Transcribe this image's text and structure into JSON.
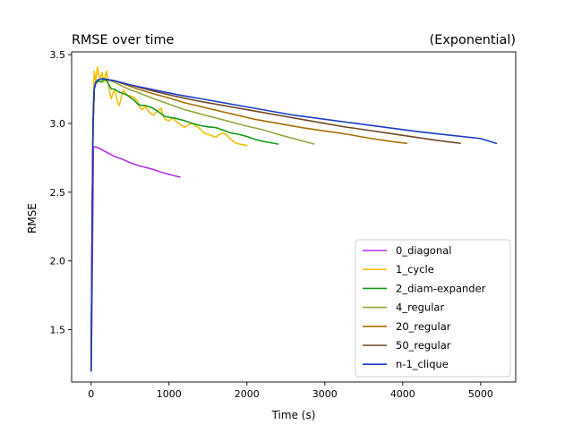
{
  "chart_data": {
    "type": "line",
    "title": "RMSE over time",
    "title_right": "(Exponential)",
    "xlabel": "Time (s)",
    "ylabel": "RMSE",
    "xlim": [
      -250,
      5450
    ],
    "ylim": [
      1.12,
      3.52
    ],
    "xticks": [
      0,
      1000,
      2000,
      3000,
      4000,
      5000
    ],
    "yticks": [
      1.5,
      2.0,
      2.5,
      3.0,
      3.5
    ],
    "grid": false,
    "legend_position": "lower right",
    "series": [
      {
        "name": "0_diagonal",
        "color": "#b030e8",
        "points": [
          [
            0,
            1.2
          ],
          [
            10,
            1.6
          ],
          [
            20,
            2.2
          ],
          [
            30,
            2.83
          ],
          [
            50,
            2.83
          ],
          [
            100,
            2.82
          ],
          [
            150,
            2.805
          ],
          [
            200,
            2.79
          ],
          [
            250,
            2.775
          ],
          [
            300,
            2.76
          ],
          [
            400,
            2.74
          ],
          [
            500,
            2.715
          ],
          [
            600,
            2.695
          ],
          [
            700,
            2.68
          ],
          [
            800,
            2.665
          ],
          [
            900,
            2.645
          ],
          [
            1000,
            2.63
          ],
          [
            1100,
            2.615
          ],
          [
            1140,
            2.61
          ]
        ]
      },
      {
        "name": "1_cycle",
        "color": "#f5be00",
        "points": [
          [
            0,
            1.2
          ],
          [
            15,
            2.5
          ],
          [
            25,
            3.1
          ],
          [
            40,
            3.38
          ],
          [
            60,
            3.3
          ],
          [
            80,
            3.41
          ],
          [
            100,
            3.35
          ],
          [
            120,
            3.33
          ],
          [
            140,
            3.37
          ],
          [
            160,
            3.3
          ],
          [
            180,
            3.34
          ],
          [
            200,
            3.38
          ],
          [
            220,
            3.29
          ],
          [
            240,
            3.22
          ],
          [
            260,
            3.18
          ],
          [
            280,
            3.22
          ],
          [
            300,
            3.24
          ],
          [
            320,
            3.2
          ],
          [
            340,
            3.15
          ],
          [
            360,
            3.13
          ],
          [
            380,
            3.17
          ],
          [
            400,
            3.22
          ],
          [
            420,
            3.24
          ],
          [
            450,
            3.21
          ],
          [
            500,
            3.2
          ],
          [
            550,
            3.19
          ],
          [
            600,
            3.16
          ],
          [
            620,
            3.12
          ],
          [
            650,
            3.1
          ],
          [
            700,
            3.12
          ],
          [
            750,
            3.08
          ],
          [
            800,
            3.06
          ],
          [
            850,
            3.09
          ],
          [
            900,
            3.11
          ],
          [
            920,
            3.06
          ],
          [
            950,
            3.03
          ],
          [
            1000,
            3.02
          ],
          [
            1050,
            3.04
          ],
          [
            1100,
            3.01
          ],
          [
            1150,
            2.99
          ],
          [
            1200,
            2.97
          ],
          [
            1250,
            2.99
          ],
          [
            1300,
            3.0
          ],
          [
            1350,
            2.98
          ],
          [
            1400,
            2.96
          ],
          [
            1450,
            2.93
          ],
          [
            1500,
            2.92
          ],
          [
            1550,
            2.91
          ],
          [
            1600,
            2.9
          ],
          [
            1650,
            2.92
          ],
          [
            1700,
            2.93
          ],
          [
            1750,
            2.91
          ],
          [
            1800,
            2.88
          ],
          [
            1850,
            2.86
          ],
          [
            1900,
            2.85
          ],
          [
            1950,
            2.845
          ],
          [
            2000,
            2.84
          ]
        ]
      },
      {
        "name": "2_diam-expander",
        "color": "#1a9a1a",
        "points": [
          [
            0,
            1.2
          ],
          [
            15,
            2.4
          ],
          [
            25,
            3.0
          ],
          [
            40,
            3.25
          ],
          [
            60,
            3.29
          ],
          [
            80,
            3.3
          ],
          [
            100,
            3.31
          ],
          [
            130,
            3.3
          ],
          [
            160,
            3.32
          ],
          [
            200,
            3.31
          ],
          [
            230,
            3.28
          ],
          [
            260,
            3.25
          ],
          [
            300,
            3.25
          ],
          [
            350,
            3.23
          ],
          [
            400,
            3.22
          ],
          [
            450,
            3.21
          ],
          [
            500,
            3.19
          ],
          [
            550,
            3.17
          ],
          [
            600,
            3.14
          ],
          [
            650,
            3.13
          ],
          [
            700,
            3.13
          ],
          [
            750,
            3.12
          ],
          [
            800,
            3.11
          ],
          [
            850,
            3.09
          ],
          [
            900,
            3.07
          ],
          [
            950,
            3.05
          ],
          [
            1000,
            3.045
          ],
          [
            1100,
            3.035
          ],
          [
            1200,
            3.02
          ],
          [
            1300,
            3.0
          ],
          [
            1400,
            2.985
          ],
          [
            1500,
            2.975
          ],
          [
            1600,
            2.97
          ],
          [
            1700,
            2.95
          ],
          [
            1800,
            2.93
          ],
          [
            1900,
            2.92
          ],
          [
            2000,
            2.905
          ],
          [
            2100,
            2.885
          ],
          [
            2200,
            2.87
          ],
          [
            2300,
            2.86
          ],
          [
            2400,
            2.85
          ]
        ]
      },
      {
        "name": "4_regular",
        "color": "#90a840",
        "points": [
          [
            0,
            1.2
          ],
          [
            15,
            2.4
          ],
          [
            25,
            3.0
          ],
          [
            40,
            3.25
          ],
          [
            60,
            3.3
          ],
          [
            100,
            3.32
          ],
          [
            150,
            3.325
          ],
          [
            200,
            3.32
          ],
          [
            300,
            3.3
          ],
          [
            400,
            3.27
          ],
          [
            500,
            3.245
          ],
          [
            600,
            3.225
          ],
          [
            800,
            3.18
          ],
          [
            1000,
            3.14
          ],
          [
            1200,
            3.1
          ],
          [
            1400,
            3.07
          ],
          [
            1600,
            3.04
          ],
          [
            1800,
            3.01
          ],
          [
            2000,
            2.98
          ],
          [
            2200,
            2.955
          ],
          [
            2400,
            2.92
          ],
          [
            2600,
            2.89
          ],
          [
            2860,
            2.85
          ]
        ]
      },
      {
        "name": "20_regular",
        "color": "#a87000",
        "points": [
          [
            0,
            1.2
          ],
          [
            15,
            2.4
          ],
          [
            25,
            3.0
          ],
          [
            40,
            3.25
          ],
          [
            60,
            3.3
          ],
          [
            100,
            3.32
          ],
          [
            150,
            3.325
          ],
          [
            200,
            3.32
          ],
          [
            300,
            3.31
          ],
          [
            400,
            3.29
          ],
          [
            600,
            3.25
          ],
          [
            800,
            3.215
          ],
          [
            1000,
            3.185
          ],
          [
            1200,
            3.15
          ],
          [
            1500,
            3.11
          ],
          [
            1800,
            3.07
          ],
          [
            2100,
            3.03
          ],
          [
            2400,
            3.0
          ],
          [
            2700,
            2.97
          ],
          [
            3000,
            2.945
          ],
          [
            3300,
            2.92
          ],
          [
            3600,
            2.89
          ],
          [
            3900,
            2.865
          ],
          [
            4050,
            2.855
          ]
        ]
      },
      {
        "name": "50_regular",
        "color": "#704a26",
        "points": [
          [
            0,
            1.2
          ],
          [
            15,
            2.4
          ],
          [
            25,
            3.0
          ],
          [
            40,
            3.25
          ],
          [
            60,
            3.3
          ],
          [
            100,
            3.32
          ],
          [
            150,
            3.325
          ],
          [
            200,
            3.32
          ],
          [
            300,
            3.31
          ],
          [
            500,
            3.28
          ],
          [
            800,
            3.235
          ],
          [
            1100,
            3.195
          ],
          [
            1400,
            3.16
          ],
          [
            1700,
            3.13
          ],
          [
            2000,
            3.1
          ],
          [
            2300,
            3.07
          ],
          [
            2600,
            3.04
          ],
          [
            2900,
            3.01
          ],
          [
            3200,
            2.98
          ],
          [
            3500,
            2.955
          ],
          [
            3800,
            2.93
          ],
          [
            4100,
            2.905
          ],
          [
            4400,
            2.88
          ],
          [
            4740,
            2.855
          ]
        ]
      },
      {
        "name": "n-1_clique",
        "color": "#1c3cc8",
        "points": [
          [
            0,
            1.2
          ],
          [
            15,
            2.4
          ],
          [
            25,
            3.0
          ],
          [
            40,
            3.25
          ],
          [
            60,
            3.3
          ],
          [
            100,
            3.32
          ],
          [
            150,
            3.325
          ],
          [
            200,
            3.32
          ],
          [
            300,
            3.31
          ],
          [
            500,
            3.28
          ],
          [
            800,
            3.245
          ],
          [
            1100,
            3.21
          ],
          [
            1400,
            3.18
          ],
          [
            1700,
            3.15
          ],
          [
            2000,
            3.12
          ],
          [
            2300,
            3.09
          ],
          [
            2600,
            3.06
          ],
          [
            3000,
            3.03
          ],
          [
            3400,
            3.0
          ],
          [
            3800,
            2.97
          ],
          [
            4200,
            2.94
          ],
          [
            4600,
            2.915
          ],
          [
            5000,
            2.89
          ],
          [
            5200,
            2.855
          ]
        ]
      }
    ]
  }
}
